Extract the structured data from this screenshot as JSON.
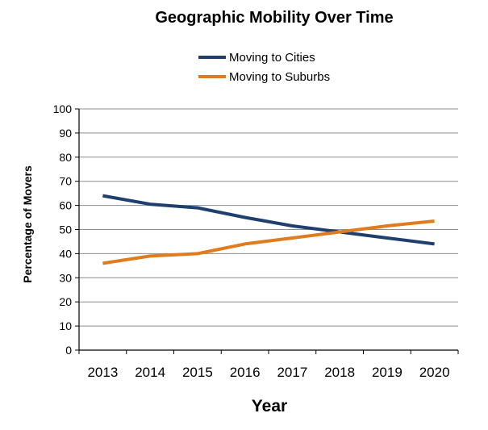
{
  "chart_data": {
    "type": "line",
    "title": "Geographic Mobility  Over Time",
    "xlabel": "Year",
    "ylabel": "Percentage of Movers",
    "categories": [
      "2013",
      "2014",
      "2015",
      "2016",
      "2017",
      "2018",
      "2019",
      "2020"
    ],
    "ylim": [
      0,
      100
    ],
    "yticks": [
      "0",
      "10",
      "20",
      "30",
      "40",
      "50",
      "60",
      "70",
      "80",
      "90",
      "100"
    ],
    "grid": true,
    "legend_position": "top-center",
    "series": [
      {
        "name": "Moving to Cities",
        "color": "#1f3f6e",
        "values": [
          64,
          60.5,
          59,
          55,
          51.5,
          49,
          46.5,
          44
        ]
      },
      {
        "name": "Moving to Suburbs",
        "color": "#e07c1e",
        "values": [
          36,
          39,
          40,
          44,
          46.5,
          49,
          51.5,
          53.5
        ]
      }
    ]
  }
}
